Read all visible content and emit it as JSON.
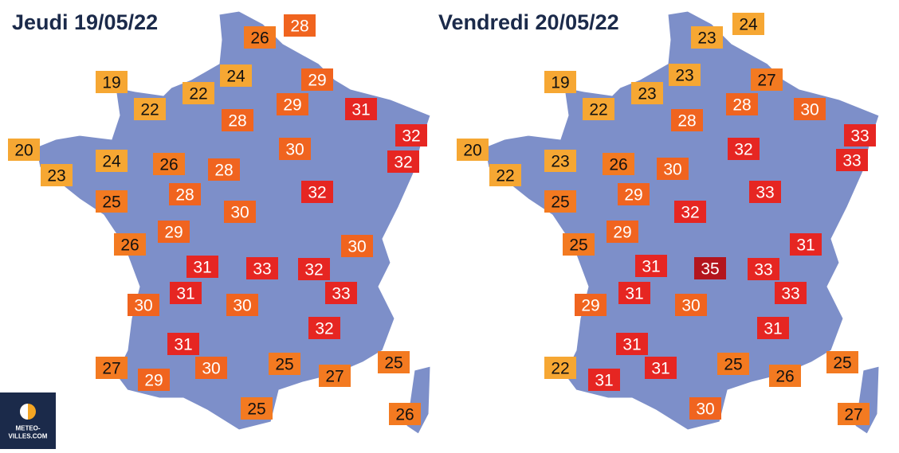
{
  "maps": [
    {
      "title": "Jeudi 19/05/22",
      "temperatures": [
        26,
        28,
        19,
        22,
        22,
        24,
        29,
        29,
        31,
        28,
        32,
        32,
        20,
        23,
        24,
        26,
        28,
        30,
        25,
        28,
        30,
        32,
        29,
        26,
        30,
        31,
        33,
        32,
        31,
        33,
        30,
        30,
        32,
        31,
        27,
        29,
        30,
        25,
        27,
        25,
        26,
        25
      ]
    },
    {
      "title": "Vendredi 20/05/22",
      "temperatures": [
        23,
        24,
        19,
        22,
        23,
        23,
        27,
        28,
        30,
        28,
        33,
        33,
        20,
        22,
        23,
        26,
        30,
        32,
        25,
        29,
        32,
        33,
        29,
        25,
        31,
        31,
        35,
        33,
        31,
        33,
        29,
        30,
        31,
        31,
        22,
        31,
        31,
        25,
        26,
        25,
        27,
        30
      ]
    }
  ],
  "logo": {
    "line1": "METEO-",
    "line2": "VILLES.COM"
  }
}
